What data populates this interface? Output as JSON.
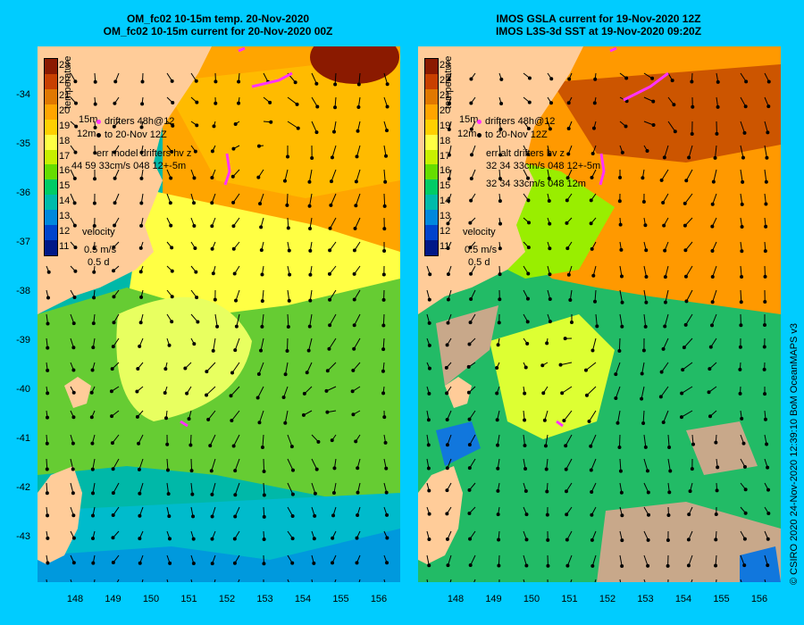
{
  "left_panel": {
    "title_line1": "OM_fc02 10-15m temp. 20-Nov-2020",
    "title_line2": "OM_fc02 10-15m current for 20-Nov-2020 00Z",
    "legend_drifters": "drifters 48h@12",
    "legend_to": "to 20-Nov 12Z",
    "legend_depth_top": "15m",
    "legend_depth_bottom": "12m",
    "err_line1": "err model drifters hv z",
    "err_line2": "44 59 33cm/s 048 12+-5m"
  },
  "right_panel": {
    "title_line1": "IMOS GSLA current for 19-Nov-2020 12Z",
    "title_line2": "IMOS L3S-3d SST at 19-Nov-2020 09:20Z",
    "legend_drifters": "drifters 48h@12",
    "legend_to": "to 20-Nov 12Z",
    "legend_depth_top": "15m",
    "legend_depth_bottom": "12m",
    "err_line1": "err alt drifters hv z",
    "err_line2": "32 34 33cm/s 048 12+-5m",
    "err_line3": "32 34 33cm/s 048 12m"
  },
  "colorbar": {
    "title": "temperature",
    "labels": [
      "23",
      "22",
      "21",
      "20",
      "19",
      "18",
      "17",
      "16",
      "15",
      "14",
      "13",
      "12",
      "11"
    ],
    "colors": [
      "#8b1a00",
      "#c84000",
      "#e07800",
      "#ffa500",
      "#ffd000",
      "#ffff44",
      "#c8f000",
      "#66dd00",
      "#00cc66",
      "#00bbaa",
      "#0088dd",
      "#0044cc",
      "#001888"
    ]
  },
  "velocity": {
    "label": "velocity",
    "scale_speed": "0.5 m/s",
    "scale_time": "0.5 d"
  },
  "lat_ticks": [
    "-34",
    "-35",
    "-36",
    "-37",
    "-38",
    "-39",
    "-40",
    "-41",
    "-42",
    "-43"
  ],
  "lon_ticks": [
    "148",
    "149",
    "150",
    "151",
    "152",
    "153",
    "154",
    "155",
    "156"
  ],
  "colors": {
    "background": "#00ccff",
    "land": "#ffcc99",
    "drifter": "#ff33ff"
  },
  "credit": "© CSIRO 2020   24-Nov-2020 12:39:10 BoM OceanMAPS v3"
}
